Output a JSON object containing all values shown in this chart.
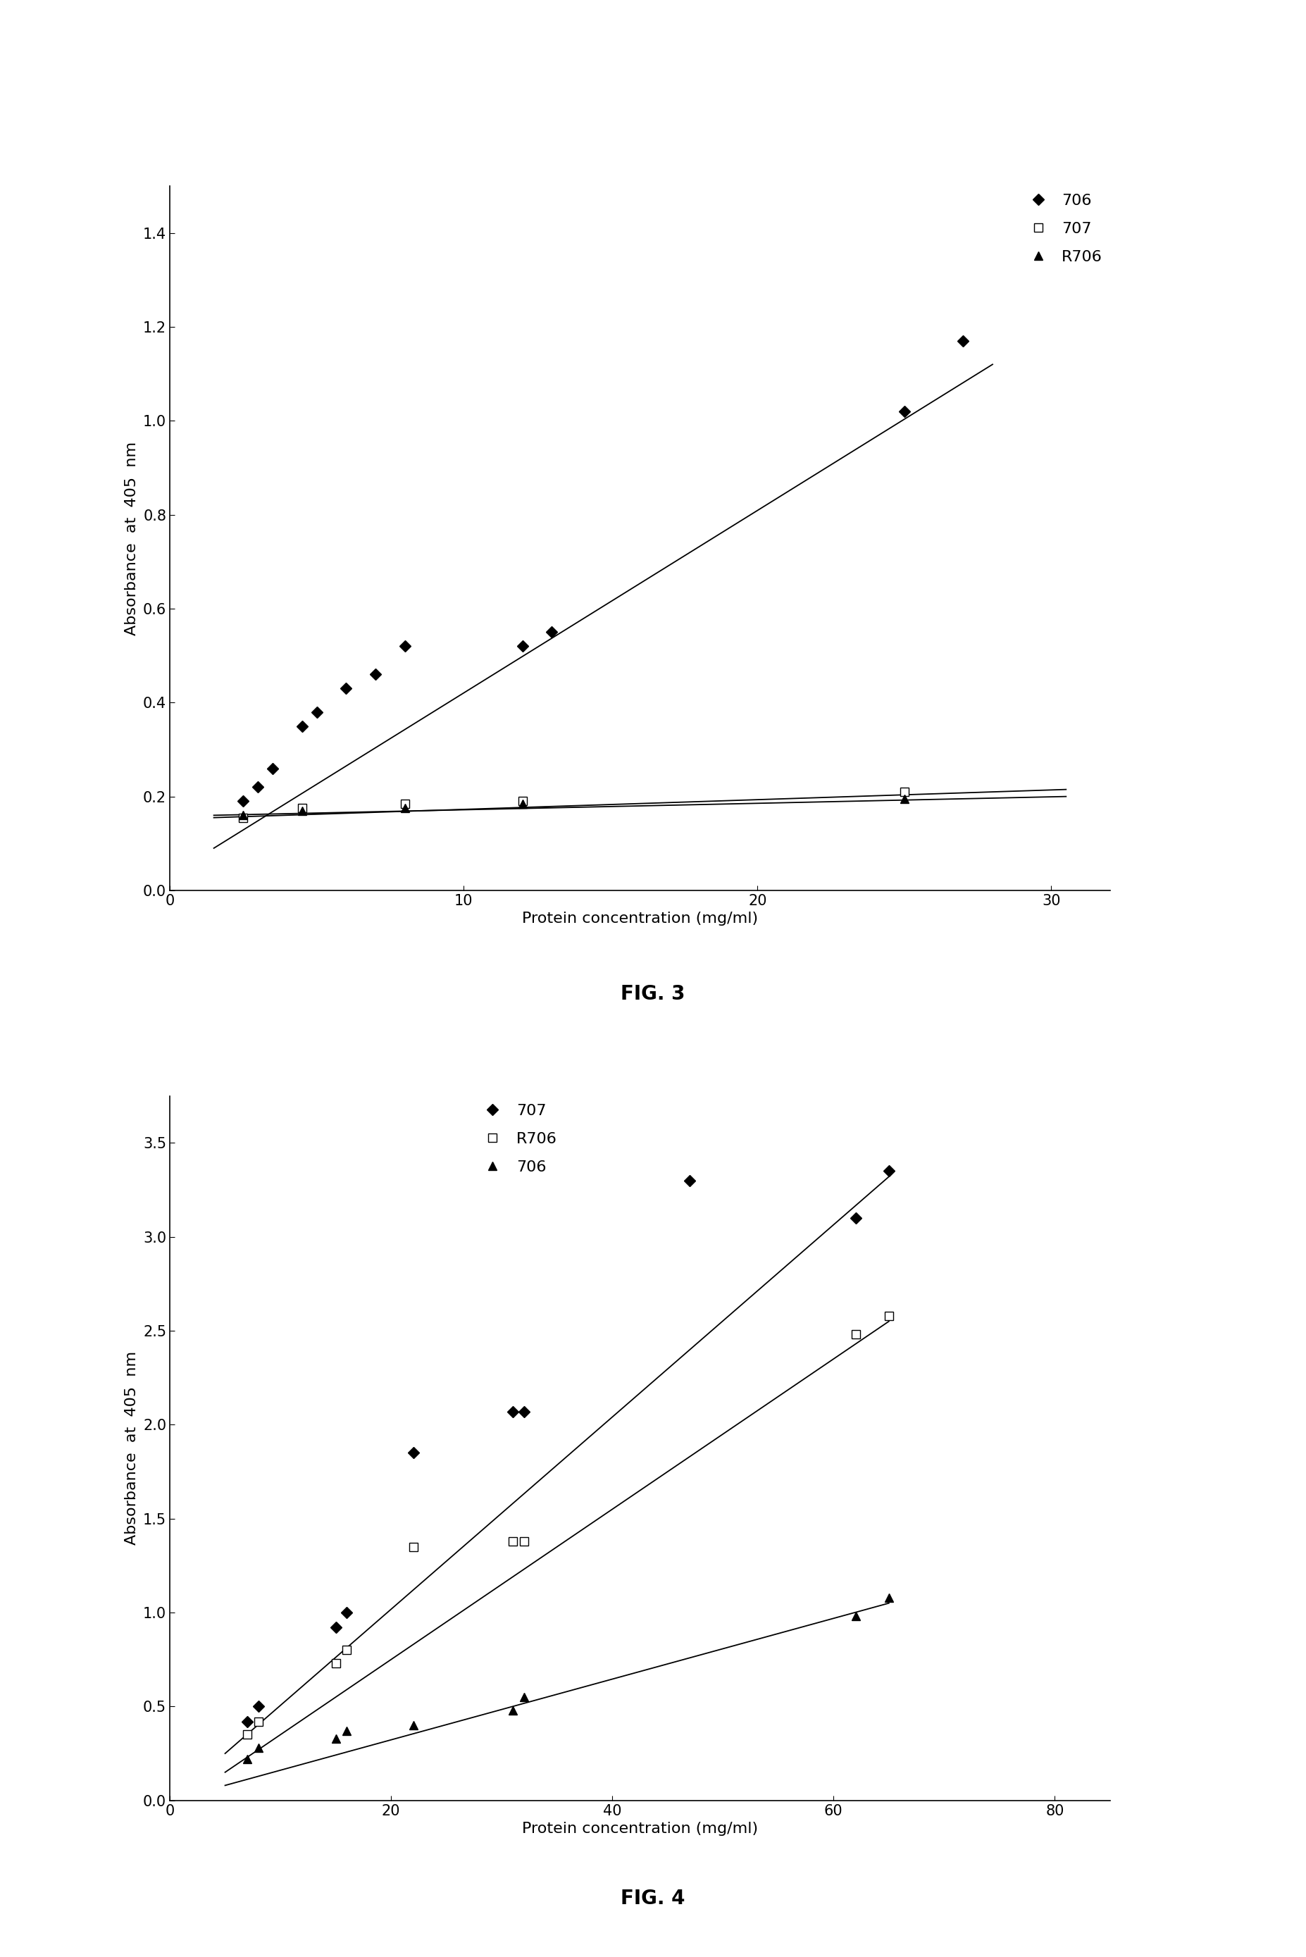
{
  "fig3": {
    "title": "FIG. 3",
    "xlabel": "Protein concentration (mg/ml)",
    "ylabel": "Absorbance  at  405  nm",
    "xlim": [
      0,
      32
    ],
    "ylim": [
      0,
      1.5
    ],
    "xticks": [
      0,
      10,
      20,
      30
    ],
    "yticks": [
      0,
      0.2,
      0.4,
      0.6,
      0.8,
      1.0,
      1.2,
      1.4
    ],
    "series": [
      {
        "label": "706",
        "marker": "D",
        "marker_face": "black",
        "marker_edge": "black",
        "marker_size": 8,
        "x": [
          2.5,
          3.0,
          3.5,
          4.5,
          5.0,
          6.0,
          7.0,
          8.0,
          12.0,
          13.0,
          25.0,
          27.0
        ],
        "y": [
          0.19,
          0.22,
          0.26,
          0.35,
          0.38,
          0.43,
          0.46,
          0.52,
          0.52,
          0.55,
          1.02,
          1.17
        ],
        "fit_x": [
          1.5,
          28.0
        ],
        "fit_y": [
          0.09,
          1.12
        ],
        "draw_line": true
      },
      {
        "label": "707",
        "marker": "s",
        "marker_face": "white",
        "marker_edge": "black",
        "marker_size": 8,
        "x": [
          2.5,
          4.5,
          8.0,
          12.0,
          25.0
        ],
        "y": [
          0.155,
          0.175,
          0.185,
          0.19,
          0.21
        ],
        "fit_x": [
          1.5,
          30.5
        ],
        "fit_y": [
          0.155,
          0.215
        ],
        "draw_line": true
      },
      {
        "label": "R706",
        "marker": "^",
        "marker_face": "black",
        "marker_edge": "black",
        "marker_size": 8,
        "x": [
          2.5,
          4.5,
          8.0,
          12.0,
          25.0
        ],
        "y": [
          0.16,
          0.17,
          0.175,
          0.185,
          0.195
        ],
        "fit_x": [
          1.5,
          30.5
        ],
        "fit_y": [
          0.16,
          0.2
        ],
        "draw_line": true
      }
    ],
    "legend_entries": [
      "706",
      "707",
      "R706"
    ],
    "legend_markers": [
      "D",
      "s",
      "^"
    ],
    "legend_mfc": [
      "black",
      "white",
      "black"
    ]
  },
  "fig4": {
    "title": "FIG. 4",
    "xlabel": "Protein concentration (mg/ml)",
    "ylabel": "Absorbance  at  405  nm",
    "xlim": [
      0,
      85
    ],
    "ylim": [
      0,
      3.75
    ],
    "xticks": [
      0,
      20,
      40,
      60,
      80
    ],
    "yticks": [
      0,
      0.5,
      1.0,
      1.5,
      2.0,
      2.5,
      3.0,
      3.5
    ],
    "series": [
      {
        "label": "707",
        "marker": "D",
        "marker_face": "black",
        "marker_edge": "black",
        "marker_size": 8,
        "x": [
          7.0,
          8.0,
          15.0,
          16.0,
          22.0,
          31.0,
          32.0,
          47.0,
          62.0,
          65.0
        ],
        "y": [
          0.42,
          0.5,
          0.92,
          1.0,
          1.85,
          2.07,
          2.07,
          3.3,
          3.1,
          3.35
        ],
        "fit_x": [
          5.0,
          65.0
        ],
        "fit_y": [
          0.25,
          3.32
        ],
        "draw_line": true
      },
      {
        "label": "R706",
        "marker": "s",
        "marker_face": "white",
        "marker_edge": "black",
        "marker_size": 8,
        "x": [
          7.0,
          8.0,
          15.0,
          16.0,
          22.0,
          31.0,
          32.0,
          62.0,
          65.0
        ],
        "y": [
          0.35,
          0.42,
          0.73,
          0.8,
          1.35,
          1.38,
          1.38,
          2.48,
          2.58
        ],
        "fit_x": [
          5.0,
          65.0
        ],
        "fit_y": [
          0.15,
          2.55
        ],
        "draw_line": true
      },
      {
        "label": "706",
        "marker": "^",
        "marker_face": "black",
        "marker_edge": "black",
        "marker_size": 8,
        "x": [
          7.0,
          8.0,
          15.0,
          16.0,
          22.0,
          31.0,
          32.0,
          62.0,
          65.0
        ],
        "y": [
          0.22,
          0.28,
          0.33,
          0.37,
          0.4,
          0.48,
          0.55,
          0.98,
          1.08
        ],
        "fit_x": [
          5.0,
          65.0
        ],
        "fit_y": [
          0.08,
          1.05
        ],
        "draw_line": true
      }
    ],
    "legend_entries": [
      "707",
      "R706",
      "706"
    ],
    "legend_markers": [
      "D",
      "s",
      "^"
    ],
    "legend_mfc": [
      "black",
      "white",
      "black"
    ]
  },
  "background_color": "#ffffff",
  "label_font_size": 16,
  "tick_font_size": 15,
  "title_font_size": 20
}
